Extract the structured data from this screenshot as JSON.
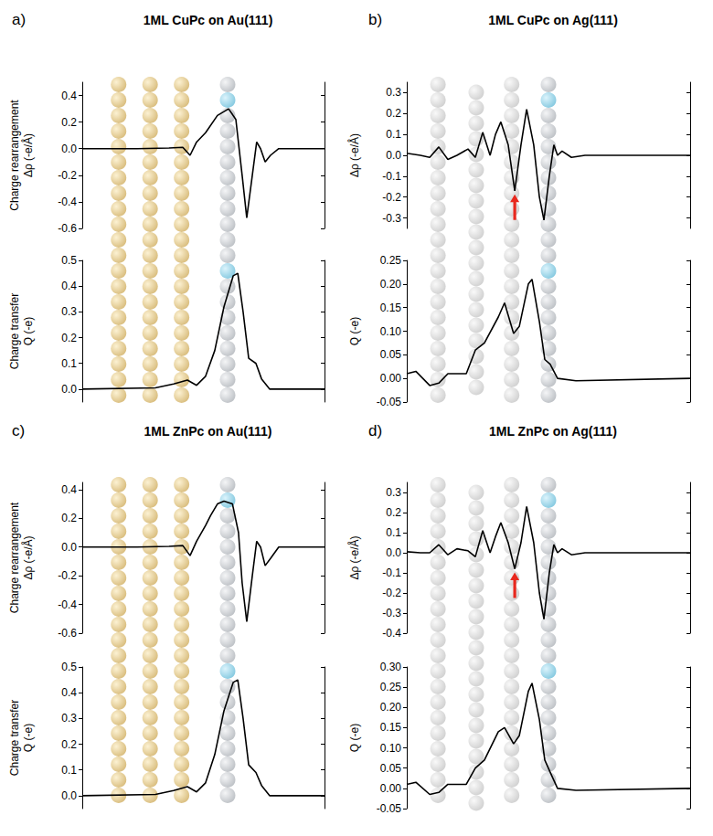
{
  "chart_data": [
    {
      "type": "line",
      "label": "a)",
      "title": "1ML CuPc on Au(111)",
      "plots": [
        {
          "type": "line",
          "ylabel": [
            "Charge rearrangement",
            "Δρ (-e/Å)"
          ],
          "color": "#000000",
          "grid": false,
          "tick_labels": "y",
          "xlim": [
            0,
            100
          ],
          "ylim": [
            -0.6,
            0.5
          ],
          "yticks": [
            -0.6,
            -0.4,
            -0.2,
            {
              "value": 0,
              "label": "0.0"
            },
            0.2,
            0.4
          ],
          "x": [
            0,
            22.6,
            35.8,
            41.5,
            44.5,
            47.2,
            50.9,
            55.8,
            60.4,
            63.4,
            66,
            67.9,
            70.2,
            72,
            73.6,
            75.5,
            77.7,
            81.1,
            100
          ],
          "values": [
            0,
            0,
            0.005,
            0.01,
            -0.05,
            0.05,
            0.12,
            0.25,
            0.3,
            0.22,
            -0.2,
            -0.52,
            -0.2,
            0.05,
            0,
            -0.1,
            -0.05,
            0,
            0
          ]
        },
        {
          "type": "line",
          "ylabel": [
            "Charge transfer",
            "Q (-e)"
          ],
          "color": "#000000",
          "grid": false,
          "tick_labels": "y",
          "xlim": [
            0,
            100
          ],
          "ylim": [
            -0.05,
            0.5
          ],
          "yticks": [
            {
              "value": 0,
              "label": "0.0"
            },
            0.1,
            0.2,
            0.3,
            0.4,
            0.5
          ],
          "x": [
            0,
            30.2,
            37.7,
            43.4,
            47.2,
            50.9,
            54.7,
            58.5,
            62.3,
            64.2,
            66.4,
            68.7,
            71.7,
            74,
            77.4,
            100
          ],
          "values": [
            0,
            0.005,
            0.02,
            0.035,
            0.015,
            0.05,
            0.15,
            0.32,
            0.44,
            0.45,
            0.3,
            0.12,
            0.1,
            0.04,
            0,
            0
          ]
        }
      ]
    },
    {
      "type": "line",
      "label": "b)",
      "title": "1ML CuPc on Ag(111)",
      "plots": [
        {
          "type": "line",
          "ylabel": [
            "Δρ (-e/Å)"
          ],
          "color": "#000000",
          "grid": false,
          "tick_labels": "y",
          "xlim": [
            0,
            100
          ],
          "ylim": [
            -0.35,
            0.35
          ],
          "yticks": [
            -0.3,
            -0.2,
            -0.1,
            {
              "value": 0,
              "label": "0.0"
            },
            0.1,
            0.2,
            0.3
          ],
          "x": [
            0,
            4.8,
            8.1,
            11.3,
            14.5,
            17.7,
            21.6,
            24.2,
            26.8,
            29.4,
            31.3,
            33.2,
            35.8,
            38.1,
            40.3,
            42.3,
            44.8,
            46.8,
            48.4,
            50.3,
            51.9,
            53.2,
            54.8,
            58.1,
            62.9,
            100
          ],
          "values": [
            0.01,
            0,
            -0.01,
            0.04,
            -0.02,
            0,
            0.03,
            -0.01,
            0.11,
            0,
            0.1,
            0.16,
            0.05,
            -0.17,
            0.05,
            0.22,
            0.05,
            -0.2,
            -0.31,
            -0.1,
            0.05,
            0,
            0.02,
            -0.01,
            0,
            0
          ],
          "arrow_at": {
            "x": 38.1,
            "y": -0.17
          }
        },
        {
          "type": "line",
          "ylabel": [
            "Q (-e)"
          ],
          "color": "#000000",
          "grid": false,
          "tick_labels": "y",
          "xlim": [
            0,
            100
          ],
          "ylim": [
            -0.05,
            0.25
          ],
          "yticks": [
            -0.05,
            {
              "value": 0,
              "label": "0.00"
            },
            0.05,
            {
              "value": 0.1,
              "label": "0.10"
            },
            0.15,
            {
              "value": 0.2,
              "label": "0.20"
            },
            0.25
          ],
          "x": [
            0,
            3.2,
            8.1,
            11.3,
            14.5,
            21,
            24.2,
            27.4,
            32.3,
            34.5,
            37.7,
            39.7,
            42.9,
            44.2,
            46.8,
            48.7,
            50.6,
            53.2,
            59.7,
            100
          ],
          "values": [
            0.01,
            0.015,
            -0.015,
            -0.01,
            0.01,
            0.01,
            0.06,
            0.075,
            0.13,
            0.16,
            0.095,
            0.11,
            0.2,
            0.21,
            0.12,
            0.04,
            0.03,
            0,
            -0.005,
            0
          ]
        }
      ]
    },
    {
      "type": "line",
      "label": "c)",
      "title": "1ML ZnPc on Au(111)",
      "plots": [
        {
          "type": "line",
          "ylabel": [
            "Charge rearrangement",
            "Δρ (-e/Å)"
          ],
          "color": "#000000",
          "grid": false,
          "tick_labels": "y",
          "xlim": [
            0,
            100
          ],
          "ylim": [
            -0.6,
            0.45
          ],
          "yticks": [
            -0.6,
            -0.4,
            -0.2,
            {
              "value": 0,
              "label": "0.0"
            },
            0.2,
            0.4
          ],
          "x": [
            0,
            22.6,
            35.8,
            41.5,
            44.5,
            47.2,
            50.9,
            53,
            55.8,
            58.5,
            62,
            64.5,
            66,
            67.9,
            70.2,
            72,
            73.6,
            75.5,
            77.7,
            81.1,
            100
          ],
          "values": [
            0,
            0,
            0.005,
            0.01,
            -0.06,
            0.04,
            0.15,
            0.22,
            0.3,
            0.32,
            0.3,
            0.1,
            -0.25,
            -0.52,
            -0.2,
            0.04,
            0,
            -0.13,
            -0.08,
            0,
            0
          ]
        },
        {
          "type": "line",
          "ylabel": [
            "Charge transfer",
            "Q (-e)"
          ],
          "color": "#000000",
          "grid": false,
          "tick_labels": "y",
          "xlim": [
            0,
            100
          ],
          "ylim": [
            -0.05,
            0.5
          ],
          "yticks": [
            {
              "value": 0,
              "label": "0.0"
            },
            0.1,
            0.2,
            0.3,
            0.4,
            0.5
          ],
          "x": [
            0,
            30.2,
            37.7,
            43.4,
            47.2,
            50.9,
            54.7,
            58.5,
            62.3,
            64.2,
            66.4,
            68.7,
            71.7,
            74,
            77.4,
            100
          ],
          "values": [
            0,
            0.005,
            0.02,
            0.035,
            0.015,
            0.05,
            0.16,
            0.33,
            0.44,
            0.45,
            0.3,
            0.12,
            0.09,
            0.04,
            0,
            0
          ]
        }
      ]
    },
    {
      "type": "line",
      "label": "d)",
      "title": "1ML ZnPc on Ag(111)",
      "plots": [
        {
          "type": "line",
          "ylabel": [
            "Δρ (-e/Å)"
          ],
          "color": "#000000",
          "grid": false,
          "tick_labels": "y",
          "xlim": [
            0,
            100
          ],
          "ylim": [
            -0.4,
            0.35
          ],
          "yticks": [
            -0.4,
            -0.3,
            -0.2,
            -0.1,
            {
              "value": 0,
              "label": "0.0"
            },
            0.1,
            0.2,
            0.3
          ],
          "x": [
            0,
            4.8,
            8.1,
            11.3,
            14.5,
            17.7,
            21.6,
            24.2,
            26.8,
            29.4,
            31.3,
            33.2,
            35.8,
            38.1,
            40.3,
            42.3,
            44.8,
            46.8,
            48.4,
            50.3,
            51.9,
            53.2,
            54.8,
            58.1,
            62.9,
            100
          ],
          "values": [
            0.005,
            0,
            0,
            0.04,
            -0.01,
            0.02,
            0.01,
            -0.02,
            0.11,
            0,
            0.08,
            0.15,
            0.05,
            -0.08,
            0.05,
            0.23,
            0.05,
            -0.2,
            -0.33,
            -0.1,
            0.04,
            0,
            0.02,
            -0.01,
            0,
            0
          ],
          "arrow_at": {
            "x": 38.1,
            "y": -0.08
          }
        },
        {
          "type": "line",
          "ylabel": [
            "Q (-e)"
          ],
          "color": "#000000",
          "grid": false,
          "tick_labels": "y",
          "xlim": [
            0,
            100
          ],
          "ylim": [
            -0.05,
            0.3
          ],
          "yticks": [
            -0.05,
            {
              "value": 0,
              "label": "0.00"
            },
            0.05,
            {
              "value": 0.1,
              "label": "0.10"
            },
            0.15,
            {
              "value": 0.2,
              "label": "0.20"
            },
            0.25,
            {
              "value": 0.3,
              "label": "0.30"
            }
          ],
          "x": [
            0,
            3.2,
            8.1,
            11.3,
            14.5,
            21,
            24.2,
            27.4,
            32.3,
            34.5,
            37.7,
            39.7,
            42.9,
            44.2,
            46.8,
            48.7,
            50.6,
            53.2,
            59.7,
            100
          ],
          "values": [
            0.01,
            0.015,
            -0.015,
            -0.01,
            0.01,
            0.01,
            0.05,
            0.07,
            0.14,
            0.15,
            0.11,
            0.13,
            0.24,
            0.26,
            0.17,
            0.07,
            0.04,
            0,
            -0.005,
            0
          ]
        }
      ]
    }
  ]
}
